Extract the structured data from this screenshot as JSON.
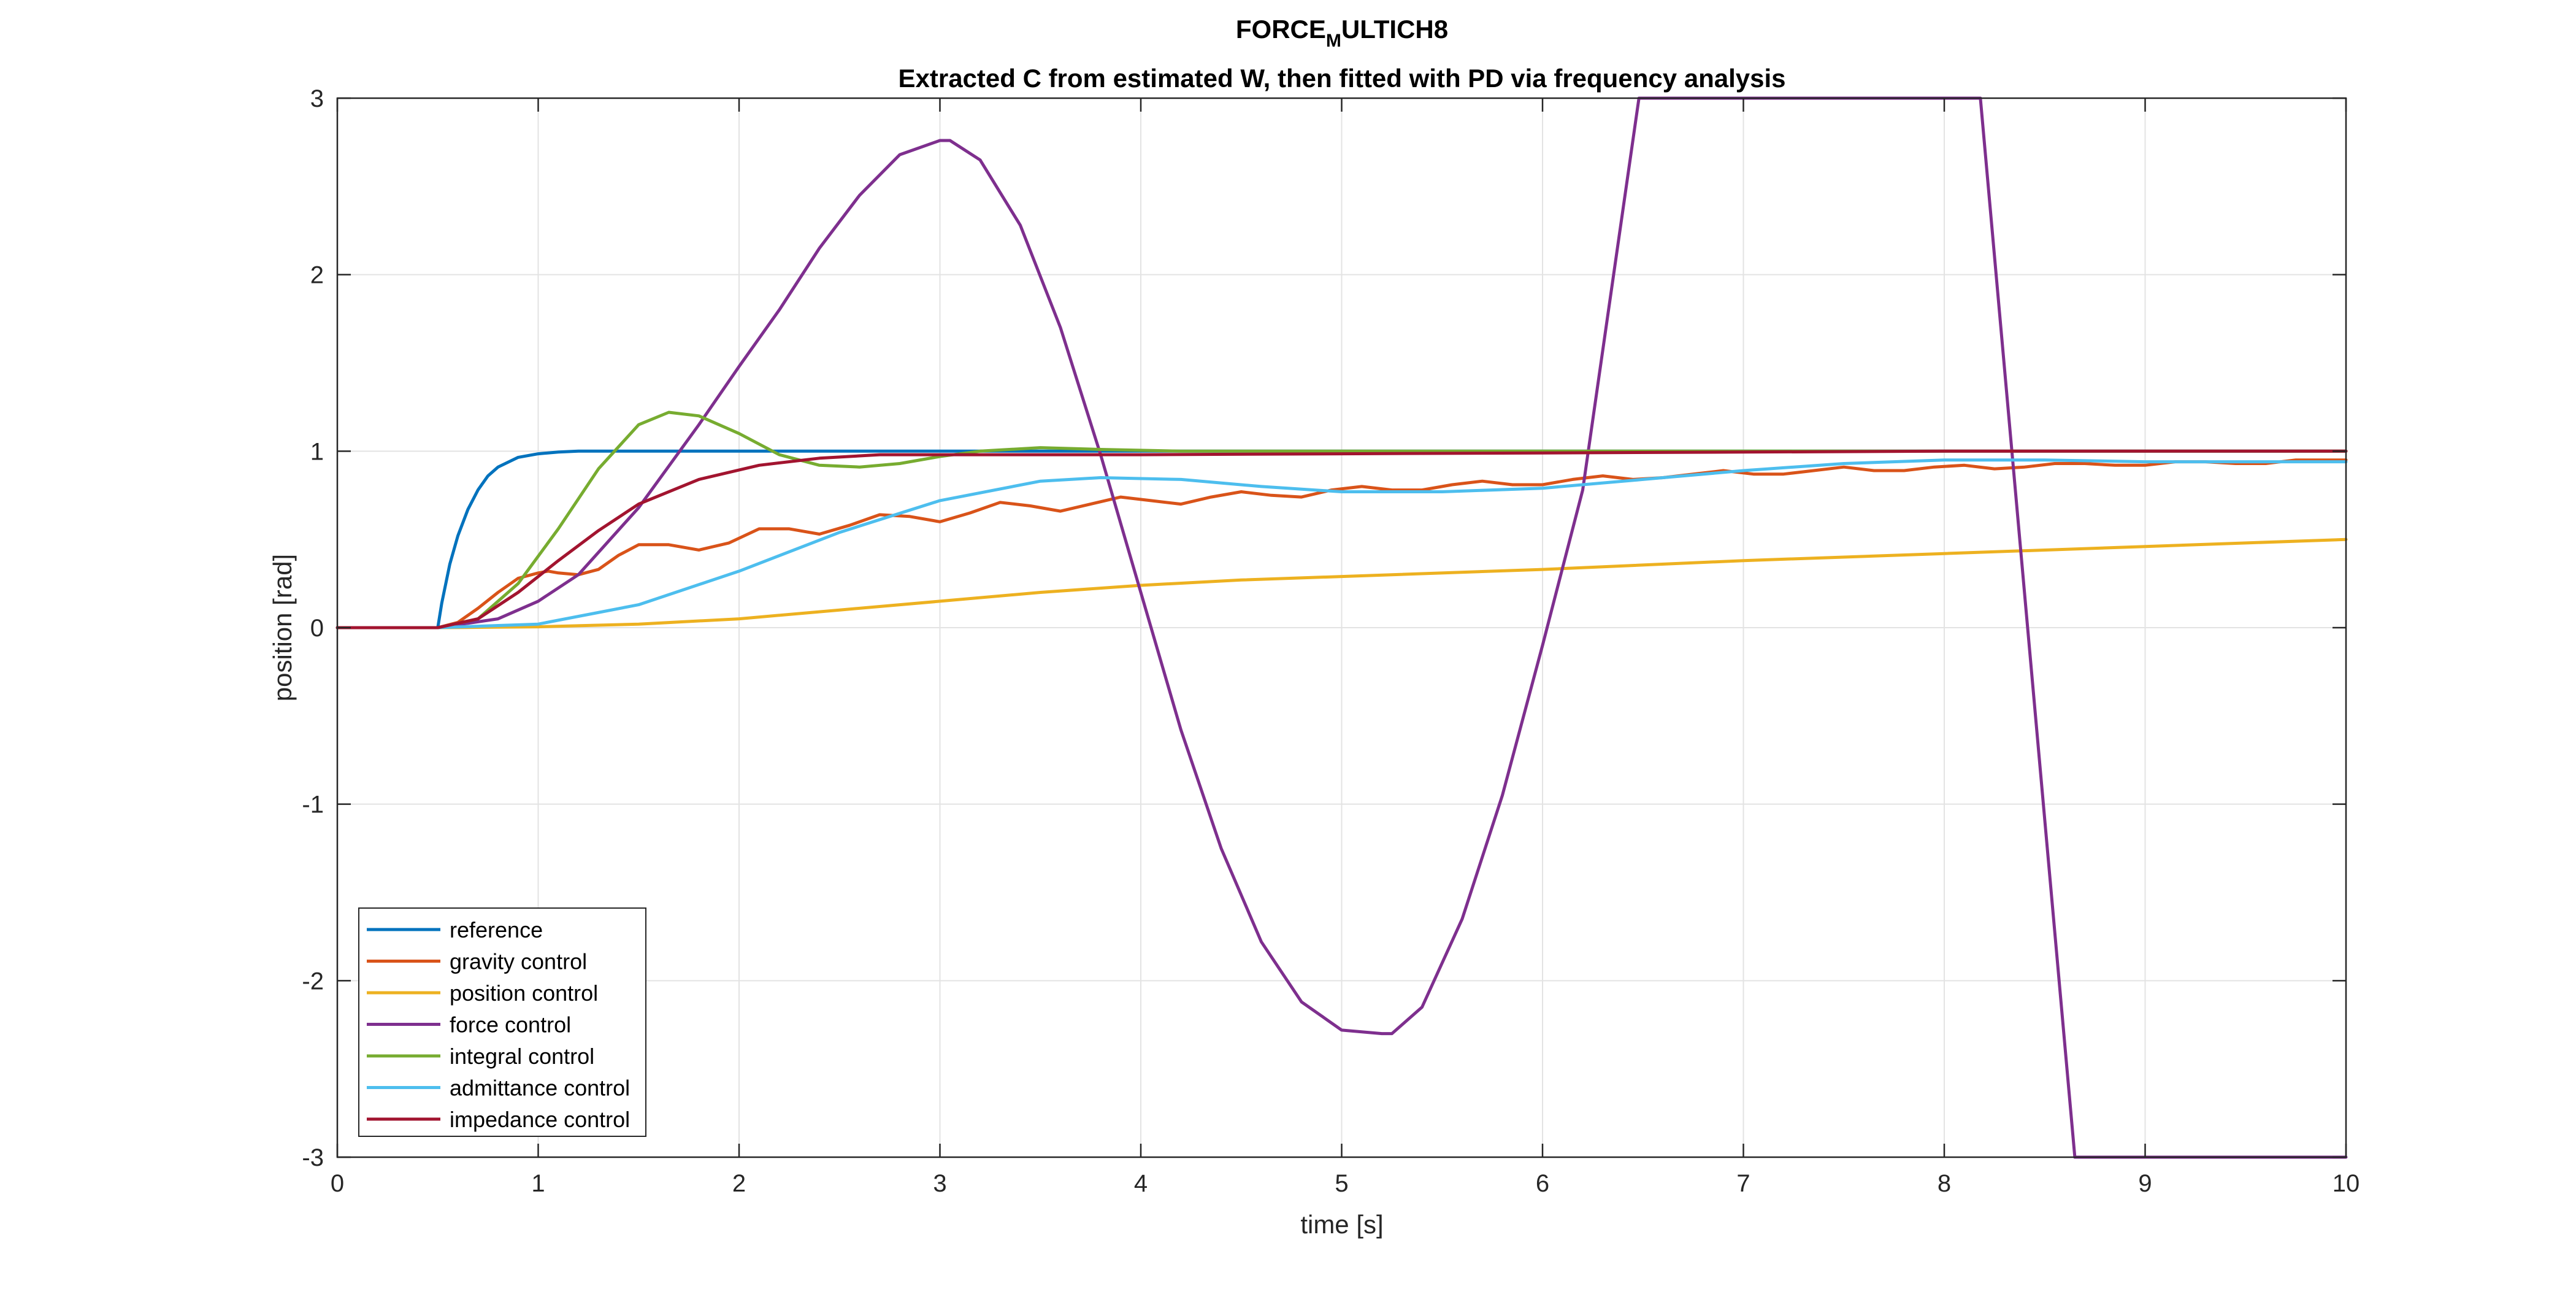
{
  "chart_data": {
    "type": "line",
    "title_main": "FORCE",
    "title_sub": "M",
    "title_rest": "ULTICH8",
    "subtitle": "Extracted C from estimated W, then fitted with PD via frequency analysis",
    "xlabel": "time [s]",
    "ylabel": "position [rad]",
    "xlim": [
      0,
      10
    ],
    "ylim": [
      -3,
      3
    ],
    "xticks": [
      0,
      1,
      2,
      3,
      4,
      5,
      6,
      7,
      8,
      9,
      10
    ],
    "yticks": [
      -3,
      -2,
      -1,
      0,
      1,
      2,
      3
    ],
    "xtick_labels": [
      "0",
      "1",
      "2",
      "3",
      "4",
      "5",
      "6",
      "7",
      "8",
      "9",
      "10"
    ],
    "ytick_labels": [
      "-3",
      "-2",
      "-1",
      "0",
      "1",
      "2",
      "3"
    ],
    "grid": true,
    "legend_position": "bottom-left",
    "series": [
      {
        "name": "reference",
        "color": "#0072BD",
        "x": [
          0,
          0.5,
          0.52,
          0.56,
          0.6,
          0.65,
          0.7,
          0.75,
          0.8,
          0.9,
          1.0,
          1.1,
          1.2,
          1.5,
          2,
          3,
          4,
          5,
          6,
          7,
          8,
          9,
          10
        ],
        "y": [
          0,
          0,
          0.14,
          0.36,
          0.52,
          0.67,
          0.78,
          0.86,
          0.91,
          0.965,
          0.985,
          0.995,
          1.0,
          1.0,
          1.0,
          1.0,
          1.0,
          1.0,
          1.0,
          1.0,
          1.0,
          1.0,
          1.0
        ]
      },
      {
        "name": "gravity control",
        "color": "#D95319",
        "x": [
          0,
          0.5,
          0.6,
          0.7,
          0.8,
          0.9,
          1.0,
          1.05,
          1.1,
          1.2,
          1.3,
          1.4,
          1.5,
          1.65,
          1.8,
          1.95,
          2.1,
          2.25,
          2.4,
          2.55,
          2.7,
          2.85,
          3.0,
          3.15,
          3.3,
          3.45,
          3.6,
          3.75,
          3.9,
          4.05,
          4.2,
          4.35,
          4.5,
          4.65,
          4.8,
          4.95,
          5.1,
          5.25,
          5.4,
          5.55,
          5.7,
          5.85,
          6.0,
          6.15,
          6.3,
          6.45,
          6.6,
          6.75,
          6.9,
          7.05,
          7.2,
          7.35,
          7.5,
          7.65,
          7.8,
          7.95,
          8.1,
          8.25,
          8.4,
          8.55,
          8.7,
          8.85,
          9.0,
          9.15,
          9.3,
          9.45,
          9.6,
          9.75,
          9.9,
          10.0
        ],
        "y": [
          0,
          0,
          0.03,
          0.11,
          0.2,
          0.28,
          0.31,
          0.32,
          0.31,
          0.3,
          0.33,
          0.41,
          0.47,
          0.47,
          0.44,
          0.48,
          0.56,
          0.56,
          0.53,
          0.58,
          0.64,
          0.63,
          0.6,
          0.65,
          0.71,
          0.69,
          0.66,
          0.7,
          0.74,
          0.72,
          0.7,
          0.74,
          0.77,
          0.75,
          0.74,
          0.78,
          0.8,
          0.78,
          0.78,
          0.81,
          0.83,
          0.81,
          0.81,
          0.84,
          0.86,
          0.84,
          0.85,
          0.87,
          0.89,
          0.87,
          0.87,
          0.89,
          0.91,
          0.89,
          0.89,
          0.91,
          0.92,
          0.9,
          0.91,
          0.93,
          0.93,
          0.92,
          0.92,
          0.94,
          0.94,
          0.93,
          0.93,
          0.95,
          0.95,
          0.95
        ]
      },
      {
        "name": "position control",
        "color": "#EDB120",
        "x": [
          0,
          0.5,
          1.0,
          1.5,
          2.0,
          2.5,
          3.0,
          3.5,
          4.0,
          4.5,
          5.0,
          6.0,
          7.0,
          8.0,
          9.0,
          10.0
        ],
        "y": [
          0,
          0,
          0.005,
          0.02,
          0.05,
          0.1,
          0.15,
          0.2,
          0.24,
          0.27,
          0.29,
          0.33,
          0.38,
          0.42,
          0.46,
          0.5
        ]
      },
      {
        "name": "force control",
        "color": "#7E2F8E",
        "x": [
          0,
          0.5,
          0.8,
          1.0,
          1.2,
          1.5,
          1.8,
          2.0,
          2.2,
          2.4,
          2.6,
          2.8,
          3.0,
          3.05,
          3.2,
          3.4,
          3.6,
          3.8,
          4.0,
          4.2,
          4.4,
          4.6,
          4.8,
          5.0,
          5.2,
          5.25,
          5.4,
          5.6,
          5.8,
          6.0,
          6.2,
          6.48,
          8.18,
          8.65,
          10.0
        ],
        "y": [
          0,
          0,
          0.05,
          0.15,
          0.3,
          0.68,
          1.15,
          1.48,
          1.8,
          2.15,
          2.45,
          2.68,
          2.76,
          2.76,
          2.65,
          2.28,
          1.7,
          0.98,
          0.2,
          -0.58,
          -1.25,
          -1.78,
          -2.12,
          -2.28,
          -2.3,
          -2.3,
          -2.15,
          -1.65,
          -0.95,
          -0.1,
          0.78,
          3.0,
          3.0,
          -3.0,
          -3.0
        ]
      },
      {
        "name": "integral control",
        "color": "#77AC30",
        "x": [
          0,
          0.5,
          0.7,
          0.9,
          1.1,
          1.3,
          1.5,
          1.65,
          1.8,
          2.0,
          2.2,
          2.4,
          2.6,
          2.8,
          3.0,
          3.2,
          3.5,
          3.8,
          4.2,
          5.0,
          6.0,
          7.0,
          8.0,
          9.0,
          10.0
        ],
        "y": [
          0,
          0,
          0.05,
          0.25,
          0.56,
          0.9,
          1.15,
          1.22,
          1.2,
          1.1,
          0.98,
          0.92,
          0.91,
          0.93,
          0.97,
          1.0,
          1.02,
          1.01,
          1.0,
          1.0,
          1.0,
          1.0,
          1.0,
          1.0,
          1.0
        ]
      },
      {
        "name": "admittance control",
        "color": "#4DBEEE",
        "x": [
          0,
          0.5,
          1.0,
          1.5,
          2.0,
          2.5,
          3.0,
          3.5,
          3.8,
          4.2,
          4.6,
          5.0,
          5.5,
          6.0,
          6.5,
          7.0,
          7.5,
          8.0,
          8.5,
          9.0,
          9.5,
          10.0
        ],
        "y": [
          0,
          0,
          0.02,
          0.13,
          0.32,
          0.54,
          0.72,
          0.83,
          0.85,
          0.84,
          0.8,
          0.77,
          0.77,
          0.79,
          0.84,
          0.89,
          0.93,
          0.95,
          0.95,
          0.94,
          0.94,
          0.94
        ]
      },
      {
        "name": "impedance control",
        "color": "#A2142F",
        "x": [
          0,
          0.5,
          0.7,
          0.9,
          1.1,
          1.3,
          1.5,
          1.8,
          2.1,
          2.4,
          2.7,
          3.0,
          3.3,
          3.6,
          4.0,
          5.0,
          6.0,
          7.0,
          8.0,
          9.0,
          10.0
        ],
        "y": [
          0,
          0,
          0.05,
          0.2,
          0.38,
          0.55,
          0.7,
          0.84,
          0.92,
          0.96,
          0.98,
          0.98,
          0.98,
          0.98,
          0.98,
          0.985,
          0.99,
          0.995,
          1.0,
          1.0,
          1.0
        ]
      }
    ]
  }
}
